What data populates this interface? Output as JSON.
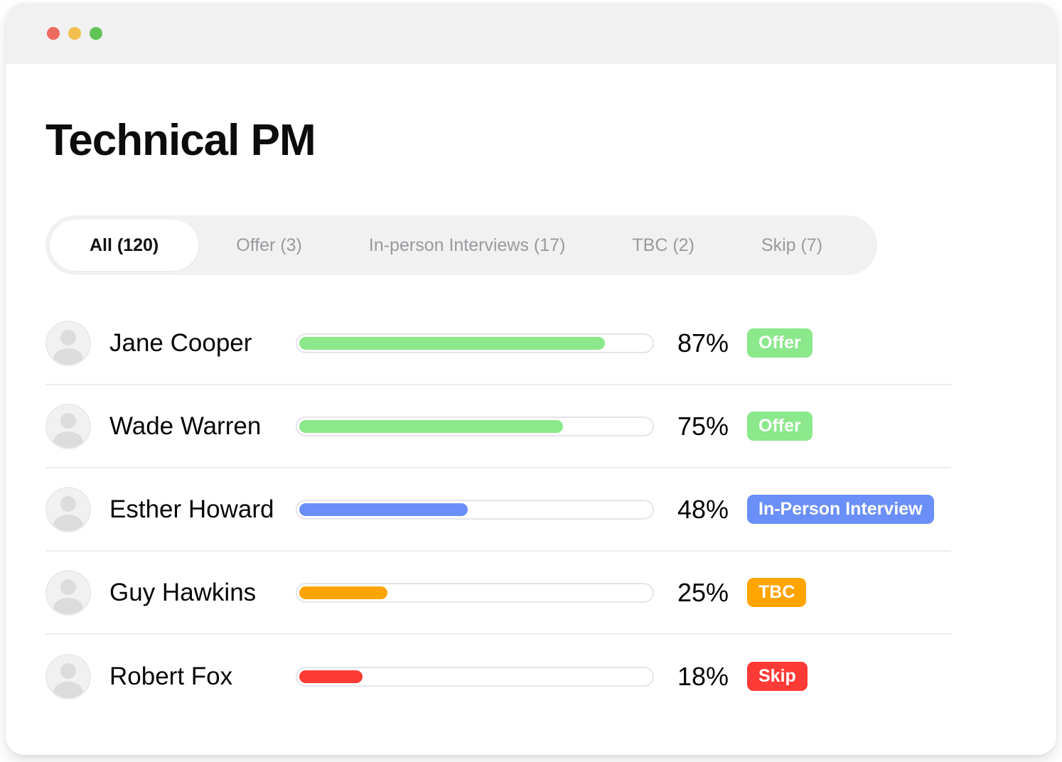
{
  "window": {
    "traffic_lights": {
      "close_color": "#EC6A5E",
      "minimize_color": "#F4BE4F",
      "zoom_color": "#5EC454"
    }
  },
  "page": {
    "title": "Technical PM"
  },
  "tabs": [
    {
      "label": "All (120)",
      "active": true
    },
    {
      "label": "Offer (3)",
      "active": false
    },
    {
      "label": "In-person Interviews (17)",
      "active": false
    },
    {
      "label": "TBC (2)",
      "active": false
    },
    {
      "label": "Skip (7)",
      "active": false
    }
  ],
  "candidates": [
    {
      "name": "Jane Cooper",
      "percent_label": "87%",
      "percent_value": 87,
      "status": "Offer",
      "status_color": "#8BE88B"
    },
    {
      "name": "Wade Warren",
      "percent_label": "75%",
      "percent_value": 75,
      "status": "Offer",
      "status_color": "#8BE88B"
    },
    {
      "name": "Esther Howard",
      "percent_label": "48%",
      "percent_value": 48,
      "status": "In-Person Interview",
      "status_color": "#6A8FF8"
    },
    {
      "name": "Guy Hawkins",
      "percent_label": "25%",
      "percent_value": 25,
      "status": "TBC",
      "status_color": "#FFA400"
    },
    {
      "name": "Robert Fox",
      "percent_label": "18%",
      "percent_value": 18,
      "status": "Skip",
      "status_color": "#FD3A36"
    }
  ]
}
